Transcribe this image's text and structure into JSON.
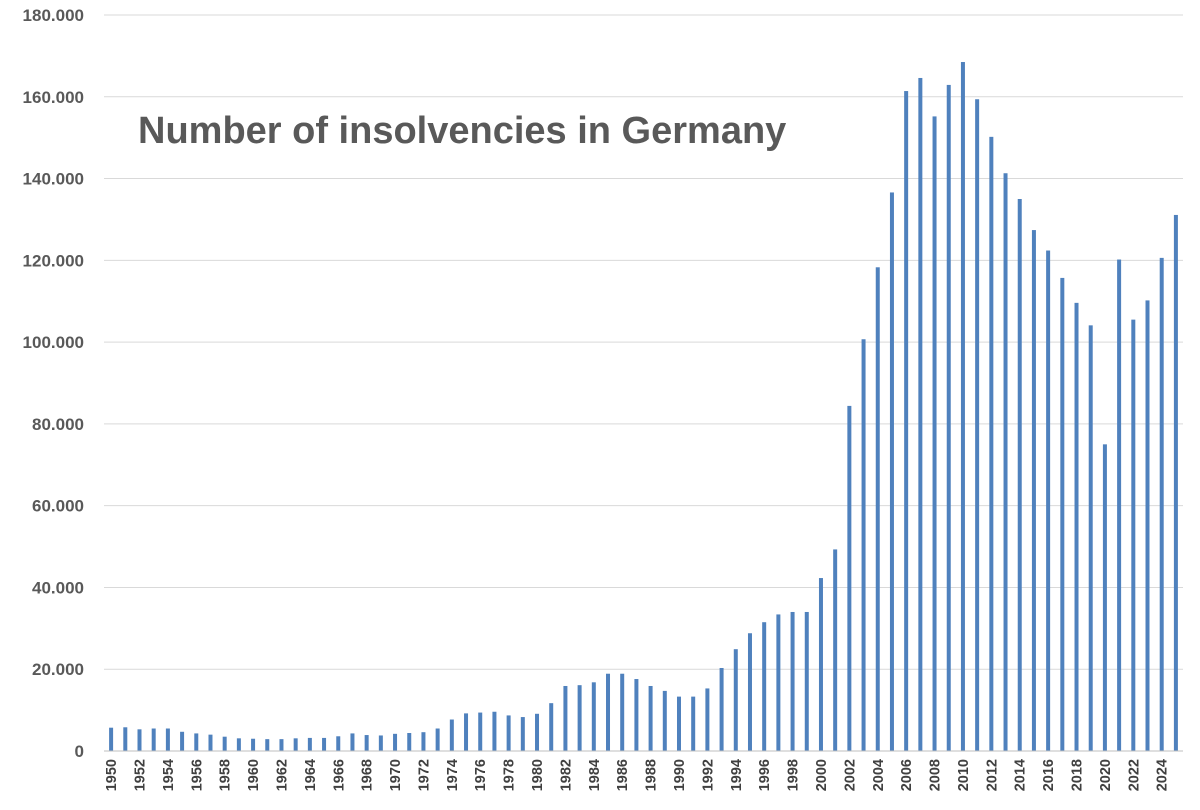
{
  "chart_data": {
    "type": "bar",
    "title": "Number of insolvencies in Germany",
    "xlabel": "",
    "ylabel": "",
    "ylim": [
      0,
      180000
    ],
    "y_ticks": [
      0,
      20000,
      40000,
      60000,
      80000,
      100000,
      120000,
      140000,
      160000,
      180000
    ],
    "y_tick_labels": [
      "0",
      "20.000",
      "40.000",
      "60.000",
      "80.000",
      "100.000",
      "120.000",
      "140.000",
      "160.000",
      "180.000"
    ],
    "grid": true,
    "bar_color": "#4f81bd",
    "x_tick_labels_shown": [
      "1950",
      "1952",
      "1954",
      "1956",
      "1958",
      "1960",
      "1962",
      "1964",
      "1966",
      "1968",
      "1970",
      "1972",
      "1974",
      "1976",
      "1978",
      "1980",
      "1982",
      "1984",
      "1986",
      "1988",
      "1990",
      "1992",
      "1994",
      "1996",
      "1998",
      "2000",
      "2002",
      "2004",
      "2006",
      "2008",
      "2010",
      "2012",
      "2014",
      "2016",
      "2018",
      "2020",
      "2022",
      "2024"
    ],
    "categories": [
      "1950",
      "1951",
      "1952",
      "1953",
      "1954",
      "1955",
      "1956",
      "1957",
      "1958",
      "1959",
      "1960",
      "1961",
      "1962",
      "1963",
      "1964",
      "1965",
      "1966",
      "1967",
      "1968",
      "1969",
      "1970",
      "1971",
      "1972",
      "1973",
      "1974",
      "1975",
      "1976",
      "1977",
      "1978",
      "1979",
      "1980",
      "1981",
      "1982",
      "1983",
      "1984",
      "1985",
      "1986",
      "1987",
      "1988",
      "1989",
      "1990",
      "1991",
      "1992",
      "1993",
      "1994",
      "1995",
      "1996",
      "1997",
      "1998",
      "1999",
      "2000",
      "2001",
      "2002",
      "2003",
      "2004",
      "2005",
      "2006",
      "2007",
      "2008",
      "2009",
      "2010",
      "2011",
      "2012",
      "2013",
      "2014",
      "2015",
      "2016",
      "2017",
      "2018",
      "2019",
      "2020",
      "2021",
      "2022",
      "2023",
      "2024",
      "2025"
    ],
    "values": [
      5700,
      5800,
      5300,
      5500,
      5500,
      4700,
      4300,
      4000,
      3500,
      3100,
      3000,
      2900,
      2900,
      3100,
      3200,
      3200,
      3600,
      4300,
      3900,
      3800,
      4200,
      4400,
      4600,
      5500,
      7700,
      9200,
      9400,
      9600,
      8700,
      8300,
      9100,
      11700,
      15900,
      16100,
      16800,
      18900,
      18900,
      17600,
      15900,
      14700,
      13300,
      13300,
      15300,
      20300,
      24900,
      28800,
      31500,
      33400,
      34000,
      34000,
      42300,
      49300,
      84400,
      100700,
      118300,
      136600,
      161400,
      164600,
      155200,
      162900,
      168500,
      159400,
      150200,
      141300,
      135000,
      127400,
      122400,
      115700,
      109600,
      104100,
      75000,
      120200,
      105500,
      110200,
      120600,
      131100
    ]
  }
}
